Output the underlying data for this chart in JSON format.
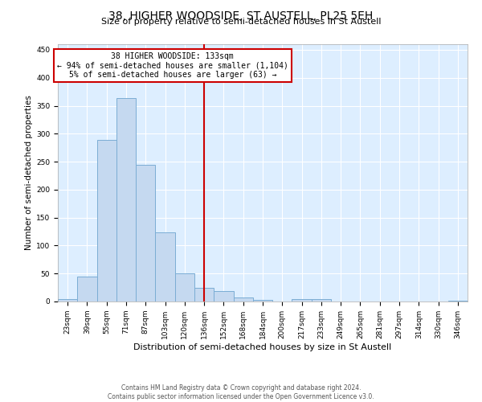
{
  "title": "38, HIGHER WOODSIDE, ST AUSTELL, PL25 5EH",
  "subtitle": "Size of property relative to semi-detached houses in St Austell",
  "xlabel": "Distribution of semi-detached houses by size in St Austell",
  "ylabel": "Number of semi-detached properties",
  "footer_line1": "Contains HM Land Registry data © Crown copyright and database right 2024.",
  "footer_line2": "Contains public sector information licensed under the Open Government Licence v3.0.",
  "annotation_line1": "38 HIGHER WOODSIDE: 133sqm",
  "annotation_line2": "← 94% of semi-detached houses are smaller (1,104)",
  "annotation_line3": "5% of semi-detached houses are larger (63) →",
  "bar_color": "#c5d9f0",
  "bar_edge_color": "#7badd4",
  "vline_color": "#cc0000",
  "annotation_box_color": "#cc0000",
  "background_color": "#ddeeff",
  "categories": [
    "23sqm",
    "39sqm",
    "55sqm",
    "71sqm",
    "87sqm",
    "103sqm",
    "120sqm",
    "136sqm",
    "152sqm",
    "168sqm",
    "184sqm",
    "200sqm",
    "217sqm",
    "233sqm",
    "249sqm",
    "265sqm",
    "281sqm",
    "297sqm",
    "314sqm",
    "330sqm",
    "346sqm"
  ],
  "bin_edges": [
    16,
    32,
    48,
    64,
    80,
    96,
    112,
    128,
    144,
    160,
    176,
    192,
    208,
    224,
    240,
    256,
    272,
    288,
    304,
    320,
    336,
    352
  ],
  "values": [
    5,
    45,
    289,
    363,
    244,
    124,
    50,
    24,
    19,
    7,
    3,
    0,
    4,
    5,
    0,
    0,
    0,
    0,
    0,
    0,
    2
  ],
  "ylim": [
    0,
    460
  ],
  "yticks": [
    0,
    50,
    100,
    150,
    200,
    250,
    300,
    350,
    400,
    450
  ],
  "title_fontsize": 10,
  "subtitle_fontsize": 8,
  "ylabel_fontsize": 7.5,
  "xlabel_fontsize": 8,
  "tick_fontsize": 6.5,
  "annotation_fontsize": 7,
  "footer_fontsize": 5.5
}
